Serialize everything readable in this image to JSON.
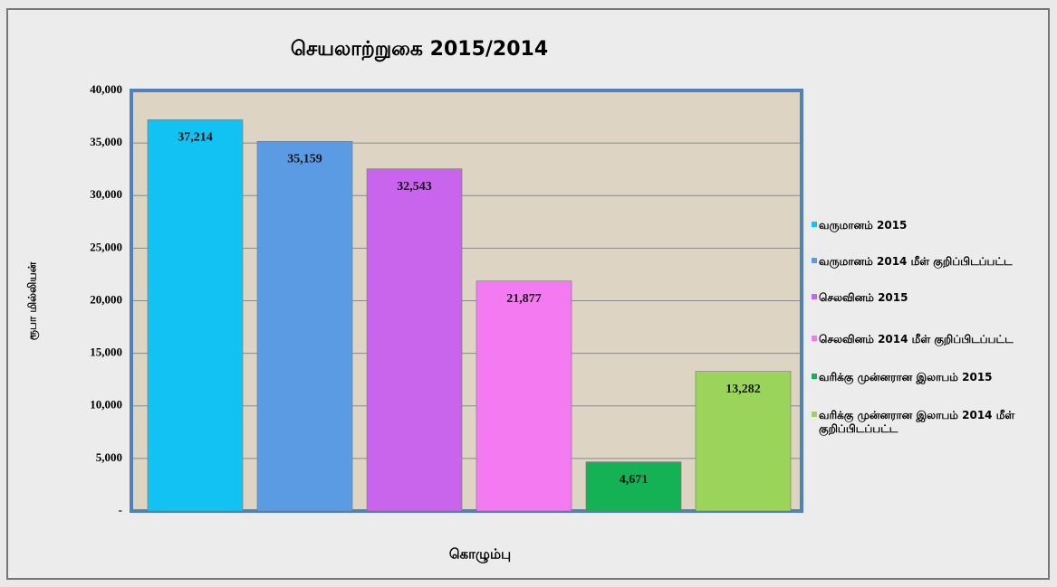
{
  "chart_data": {
    "type": "bar",
    "title": "செயலாற்றுகை 2015/2014",
    "y_label": "ரூபா மில்லியன்",
    "x_label": "கொழும்பு",
    "categories": [
      null
    ],
    "series": [
      {
        "name": "வருமானம்  2015",
        "color": "#12c2f2",
        "values": [
          37214
        ],
        "value_labels": [
          "37,214"
        ]
      },
      {
        "name": "வருமானம் 2014 மீள் குறிப்பிடப்பட்ட",
        "color": "#5b9be3",
        "values": [
          35159
        ],
        "value_labels": [
          "35,159"
        ]
      },
      {
        "name": "செலவினம் 2015",
        "color": "#c865ec",
        "values": [
          32543
        ],
        "value_labels": [
          "32,543"
        ]
      },
      {
        "name": "செலவினம்  2014 மீள் குறிப்பிடப்பட்ட",
        "color": "#f47af2",
        "values": [
          21877
        ],
        "value_labels": [
          "21,877"
        ]
      },
      {
        "name": "வரிக்கு முன்னரான  இலாபம்  2015",
        "color": "#14b254",
        "values": [
          4671
        ],
        "value_labels": [
          "4,671"
        ]
      },
      {
        "name": "வரிக்கு முன்னரான இலாபம் 2014 மீள் குறிப்பிடப்பட்ட",
        "color": "#9ad45a",
        "values": [
          13282
        ],
        "value_labels": [
          "13,282"
        ]
      }
    ],
    "ylim": [
      0,
      40000
    ],
    "yticks": [
      {
        "value": 0,
        "label": "-"
      },
      {
        "value": 5000,
        "label": "5,000"
      },
      {
        "value": 10000,
        "label": "10,000"
      },
      {
        "value": 15000,
        "label": "15,000"
      },
      {
        "value": 20000,
        "label": "20,000"
      },
      {
        "value": 25000,
        "label": "25,000"
      },
      {
        "value": 30000,
        "label": "30,000"
      },
      {
        "value": 35000,
        "label": "35,000"
      },
      {
        "value": 40000,
        "label": "40,000"
      }
    ],
    "grid": true,
    "legend": "right"
  }
}
